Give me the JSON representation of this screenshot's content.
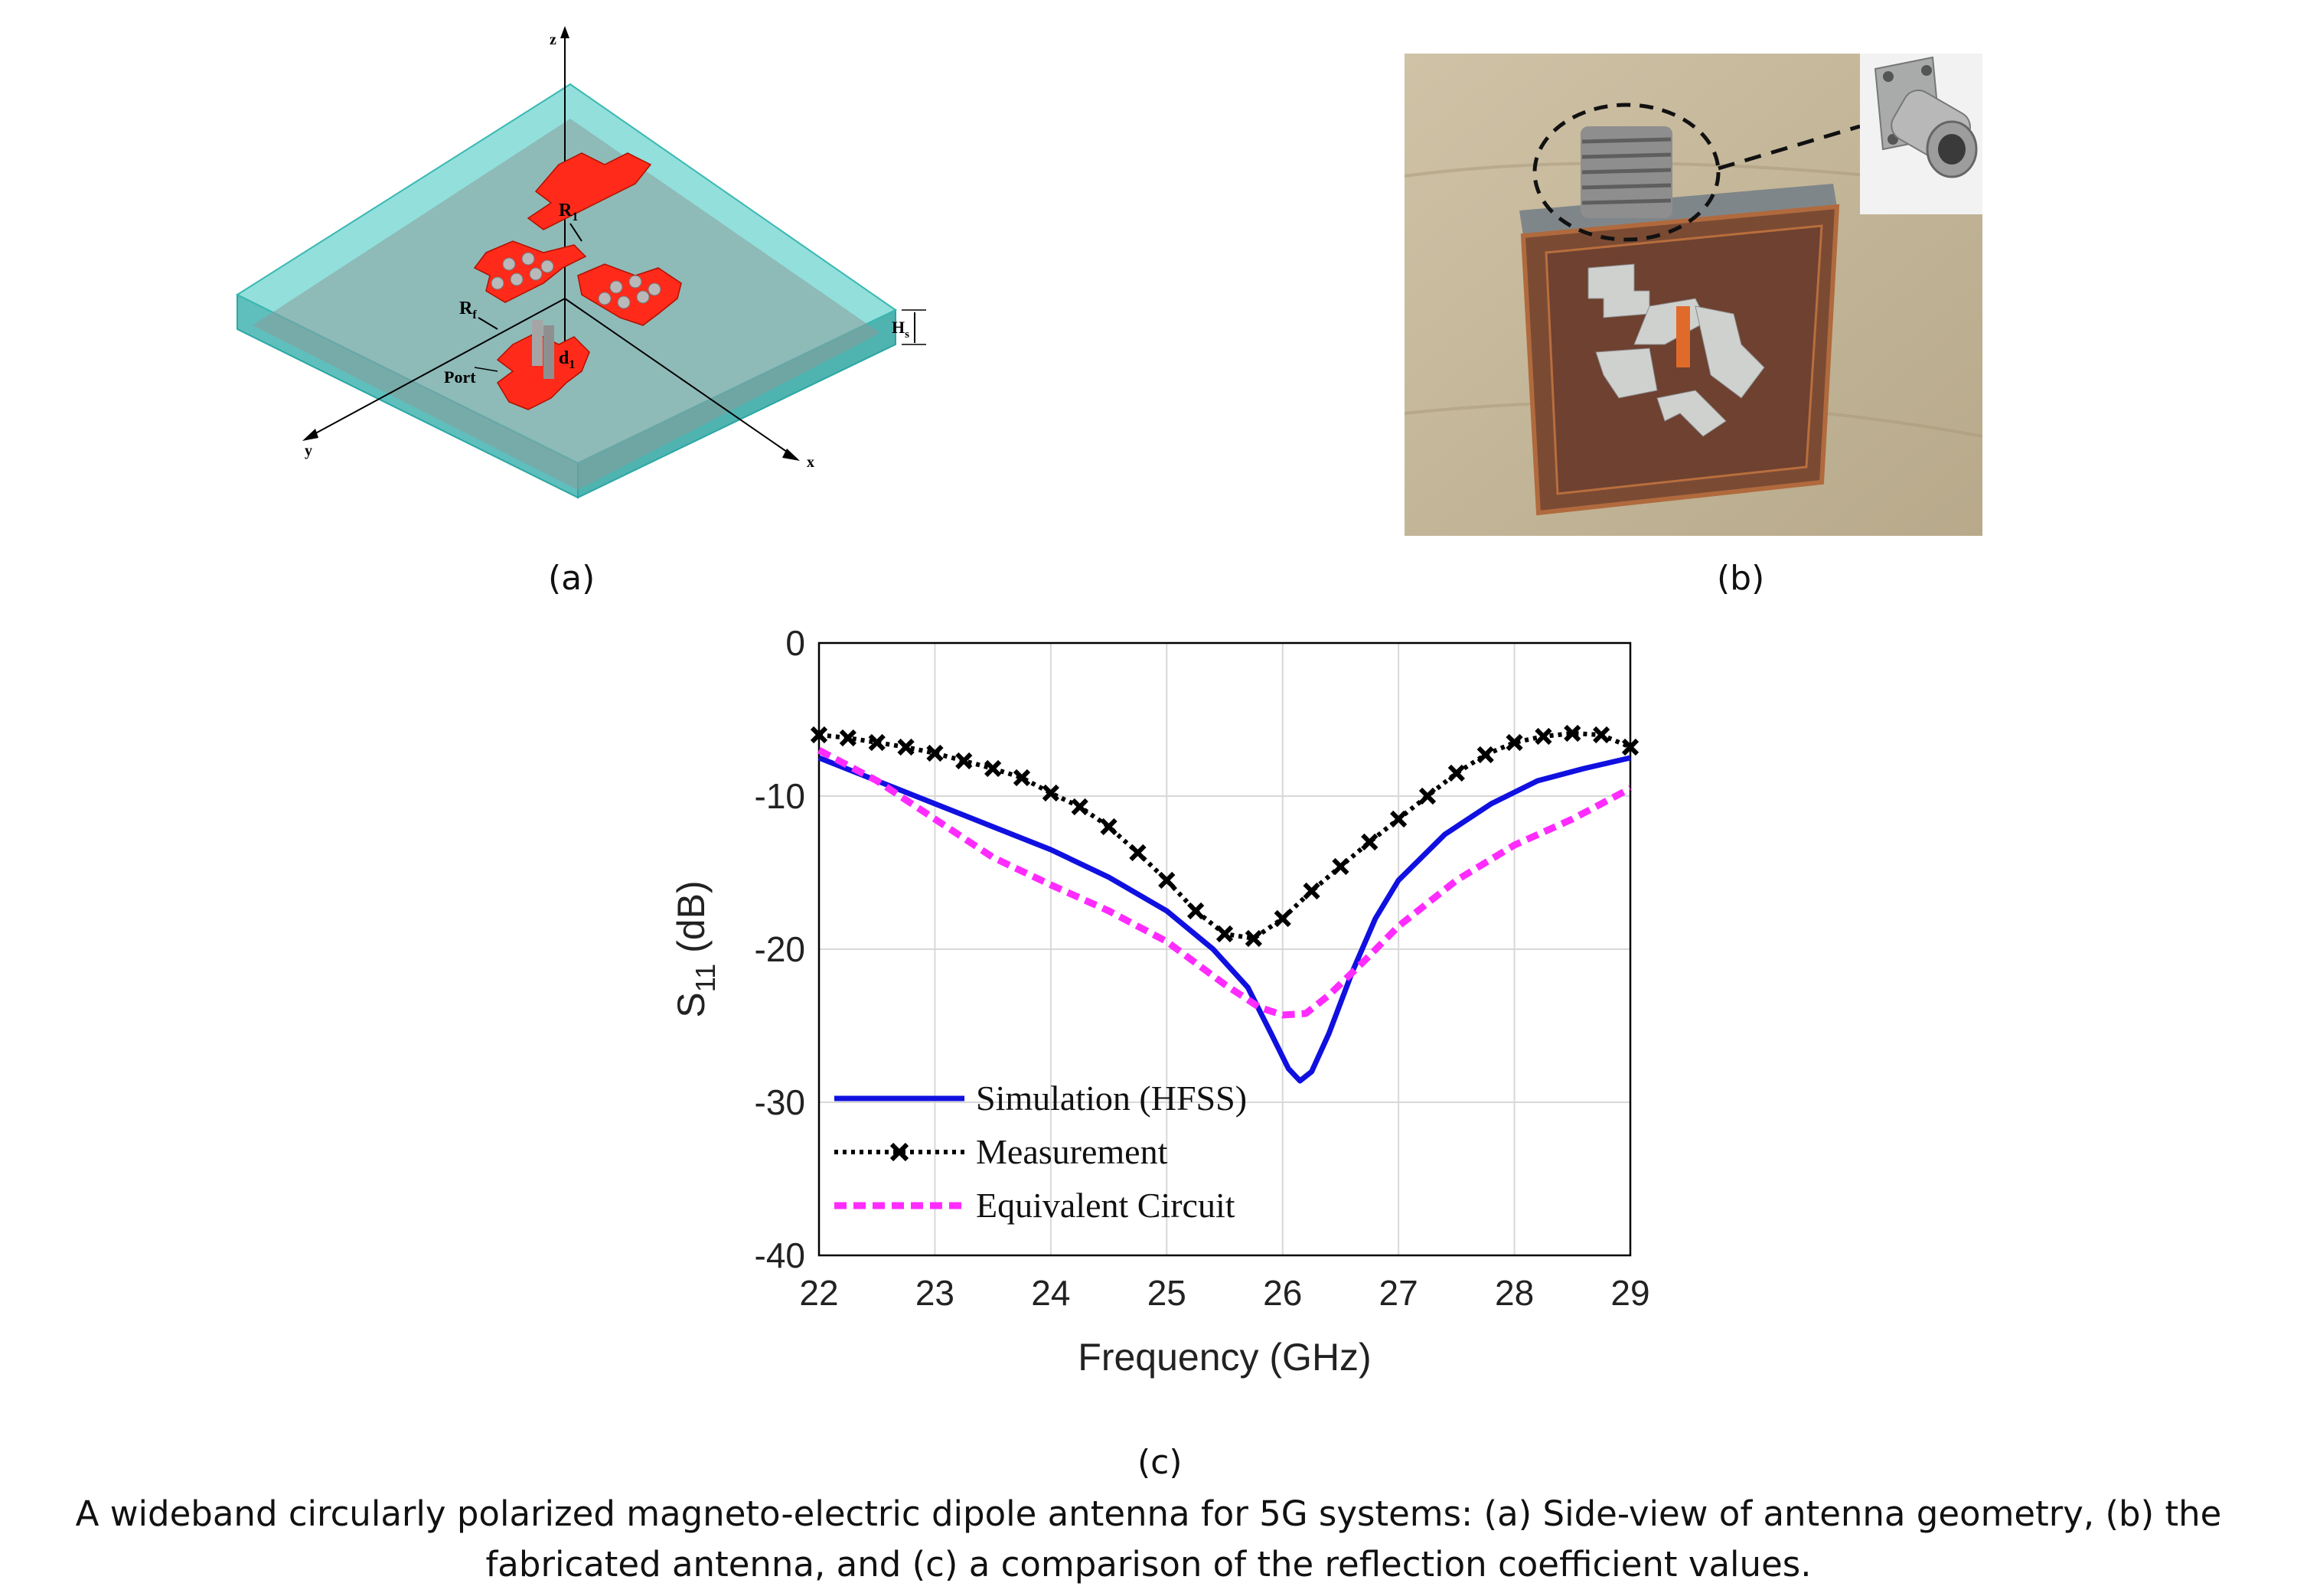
{
  "panels": {
    "a": {
      "label": "(a)",
      "axis_labels": {
        "x": "x",
        "y": "y",
        "z": "z"
      },
      "dimension_labels": {
        "r1": "R",
        "r1_sub": "1",
        "rf": "R",
        "rf_sub": "f",
        "hs": "H",
        "hs_sub": "s",
        "d1": "d",
        "d1_sub": "1",
        "port": "Port"
      },
      "colors": {
        "substrate": "#6fd3cf",
        "patch": "#ff2a1a",
        "ground": "#8a9a9a"
      }
    },
    "b": {
      "label": "(b)",
      "description_icon": "fabricated-antenna-photo"
    },
    "c": {
      "label": "(c)"
    }
  },
  "chart_data": {
    "type": "line",
    "xlabel": "Frequency (GHz)",
    "ylabel": "S",
    "ylabel_sub": "11",
    "ylabel_unit": "(dB)",
    "xlim": [
      22,
      29
    ],
    "ylim": [
      -40,
      0
    ],
    "xticks": [
      22,
      23,
      24,
      25,
      26,
      27,
      28,
      29
    ],
    "yticks": [
      0,
      -10,
      -20,
      -30,
      -40
    ],
    "grid": true,
    "legend_position": "bottom-left",
    "series": [
      {
        "name": "Simulation (HFSS)",
        "color": "#1010e0",
        "style": "solid",
        "x": [
          22,
          22.5,
          23,
          23.5,
          24,
          24.5,
          25,
          25.4,
          25.7,
          25.9,
          26.05,
          26.15,
          26.25,
          26.4,
          26.6,
          26.8,
          27,
          27.4,
          27.8,
          28.2,
          28.6,
          29
        ],
        "y": [
          -7.5,
          -9,
          -10.5,
          -12,
          -13.5,
          -15.3,
          -17.5,
          -20,
          -22.5,
          -25.5,
          -27.8,
          -28.6,
          -28,
          -25.5,
          -21.5,
          -18,
          -15.5,
          -12.5,
          -10.5,
          -9,
          -8.2,
          -7.5
        ]
      },
      {
        "name": "Measurement",
        "color": "#000000",
        "style": "dotted-x",
        "x": [
          22,
          22.25,
          22.5,
          22.75,
          23,
          23.25,
          23.5,
          23.75,
          24,
          24.25,
          24.5,
          24.75,
          25,
          25.25,
          25.5,
          25.75,
          26,
          26.25,
          26.5,
          26.75,
          27,
          27.25,
          27.5,
          27.75,
          28,
          28.25,
          28.5,
          28.75,
          29
        ],
        "y": [
          -6,
          -6.2,
          -6.5,
          -6.8,
          -7.2,
          -7.7,
          -8.2,
          -8.8,
          -9.8,
          -10.7,
          -12,
          -13.7,
          -15.5,
          -17.5,
          -19,
          -19.3,
          -18,
          -16.2,
          -14.6,
          -13,
          -11.5,
          -10,
          -8.5,
          -7.3,
          -6.5,
          -6.1,
          -5.9,
          -6,
          -6.8
        ]
      },
      {
        "name": "Equivalent Circuit",
        "color": "#ff2bff",
        "style": "dashed",
        "x": [
          22,
          22.5,
          23,
          23.5,
          24,
          24.5,
          25,
          25.5,
          25.8,
          26,
          26.2,
          26.4,
          26.7,
          27,
          27.5,
          28,
          28.5,
          29
        ],
        "y": [
          -7,
          -9,
          -11.5,
          -14,
          -15.8,
          -17.5,
          -19.5,
          -22.3,
          -23.8,
          -24.3,
          -24.2,
          -23,
          -20.8,
          -18.5,
          -15.5,
          -13.2,
          -11.5,
          -9.5
        ]
      }
    ]
  },
  "caption": {
    "line1": "A wideband circularly polarized magneto-electric dipole antenna for 5G systems: (a) Side-view of antenna geometry, (b) the",
    "line2": "fabricated antenna, and (c) a comparison of the reflection coefficient values."
  }
}
